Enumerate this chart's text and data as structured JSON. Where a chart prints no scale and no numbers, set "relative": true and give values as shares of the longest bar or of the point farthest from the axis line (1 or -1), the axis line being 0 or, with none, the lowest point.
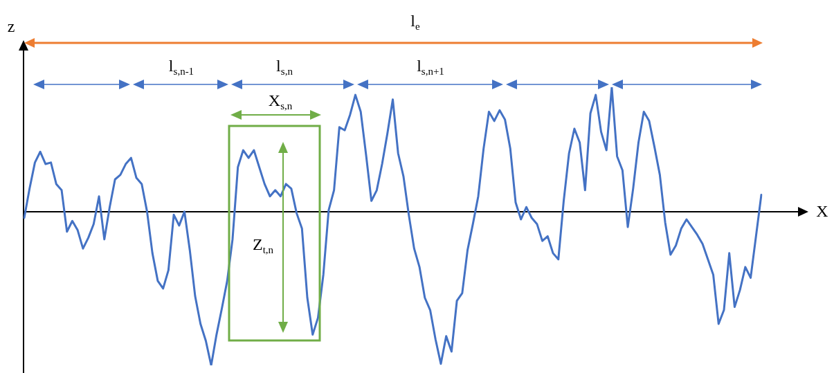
{
  "chart_data": {
    "type": "line",
    "relative": true,
    "xlabel": "X",
    "ylabel": "z",
    "grid": false,
    "legend": false,
    "marker": "none",
    "line_style": "solid",
    "annotations": [
      "l$_{e}$",
      "l$_{s,n-1}$",
      "l$_{s,n}$",
      "l$_{s,n+1}$",
      "X$_{s,n}$",
      "Z$_{t,n}$"
    ],
    "categories": [
      null,
      null,
      null,
      null,
      null,
      null,
      null,
      null,
      null,
      null,
      null,
      null,
      null,
      null,
      null,
      null,
      null,
      null,
      null,
      null,
      null,
      null,
      null,
      null,
      null,
      null,
      null,
      null,
      null,
      null,
      null,
      null,
      null,
      null,
      null,
      null,
      null,
      null,
      null,
      null,
      null,
      null,
      null,
      null,
      null,
      null,
      null,
      null,
      null,
      null,
      null,
      null,
      null,
      null,
      null,
      null,
      null,
      null,
      null,
      null,
      null,
      null,
      null,
      null,
      null,
      null,
      null,
      null,
      null,
      null,
      null,
      null,
      null,
      null,
      null,
      null,
      null,
      null,
      null,
      null,
      null,
      null,
      null,
      null,
      null,
      null,
      null,
      null,
      null,
      null,
      null,
      null,
      null,
      null,
      null,
      null,
      null,
      null,
      null,
      null,
      null,
      null,
      null,
      null,
      null,
      null,
      null,
      null,
      null,
      null,
      null,
      null,
      null,
      null,
      null,
      null,
      null,
      null,
      null,
      null,
      null,
      null,
      null,
      null,
      null,
      null,
      null,
      null,
      null,
      null,
      null,
      null,
      null,
      null,
      null,
      null,
      null,
      null,
      null
    ],
    "series": [
      {
        "color": "#4472c4",
        "values": [
          -0.04,
          0.15,
          0.32,
          0.39,
          0.31,
          0.32,
          0.18,
          0.14,
          -0.13,
          -0.06,
          -0.12,
          -0.24,
          -0.17,
          -0.08,
          0.1,
          -0.18,
          0.03,
          0.21,
          0.24,
          0.31,
          0.35,
          0.22,
          0.18,
          0.0,
          -0.27,
          -0.45,
          -0.5,
          -0.38,
          -0.02,
          -0.09,
          0.0,
          -0.25,
          -0.55,
          -0.73,
          -0.84,
          -1,
          -0.8,
          -0.63,
          -0.45,
          -0.18,
          0.29,
          0.4,
          0.35,
          0.4,
          0.29,
          0.18,
          0.1,
          0.14,
          0.1,
          0.18,
          0.15,
          -0.01,
          -0.11,
          -0.56,
          -0.8,
          -0.69,
          -0.41,
          0.01,
          0.14,
          0.55,
          0.53,
          0.63,
          0.76,
          0.65,
          0.37,
          0.07,
          0.14,
          0.31,
          0.51,
          0.73,
          0.38,
          0.23,
          -0.02,
          -0.24,
          -0.36,
          -0.56,
          -0.64,
          -0.83,
          -0.99,
          -0.81,
          -0.91,
          -0.58,
          -0.53,
          -0.25,
          -0.08,
          0.1,
          0.41,
          0.65,
          0.59,
          0.66,
          0.6,
          0.41,
          0.06,
          -0.05,
          0.03,
          -0.04,
          -0.08,
          -0.19,
          -0.16,
          -0.27,
          -0.31,
          0.07,
          0.38,
          0.54,
          0.45,
          0.14,
          0.64,
          0.76,
          0.52,
          0.4,
          0.81,
          0.36,
          0.27,
          -0.1,
          0.15,
          0.45,
          0.65,
          0.59,
          0.42,
          0.24,
          -0.07,
          -0.28,
          -0.22,
          -0.11,
          -0.05,
          -0.1,
          -0.15,
          -0.21,
          -0.31,
          -0.41,
          -0.73,
          -0.64,
          -0.27,
          -0.62,
          -0.51,
          -0.36,
          -0.43,
          -0.16,
          0.11
        ]
      }
    ]
  }
}
